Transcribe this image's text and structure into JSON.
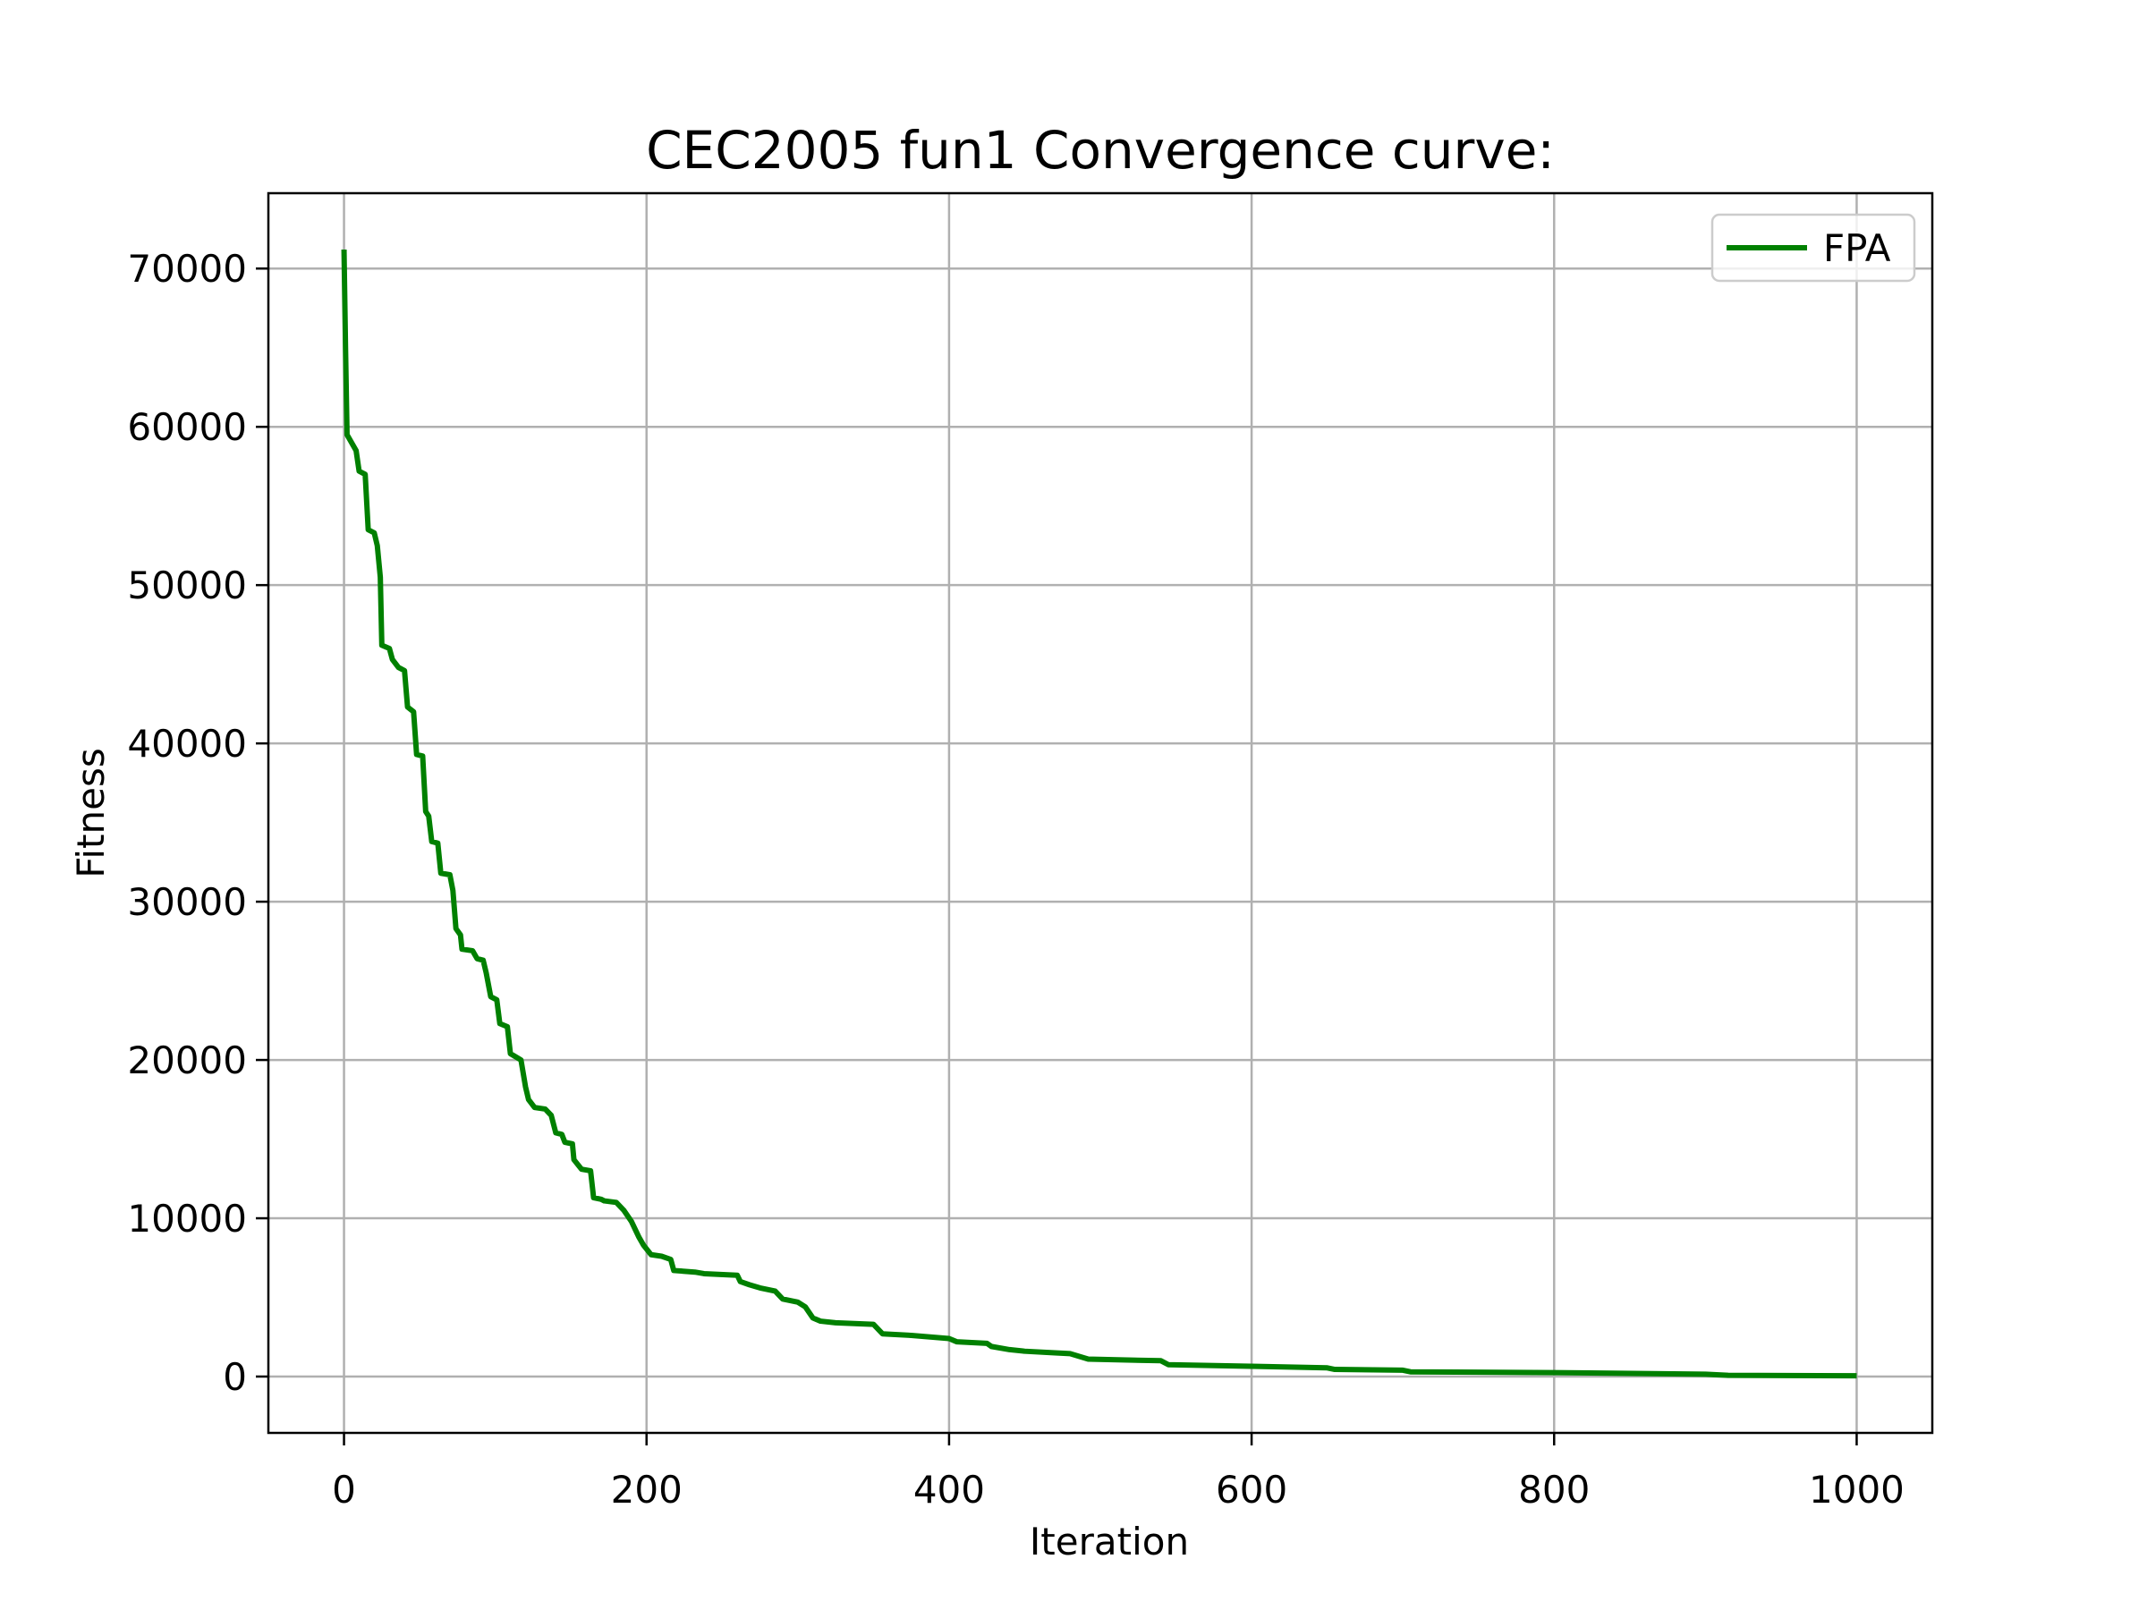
{
  "chart_data": {
    "type": "line",
    "title": "CEC2005 fun1 Convergence curve:",
    "x_label": "Iteration",
    "y_label": "Fitness",
    "x": [
      0,
      1,
      2,
      5,
      8,
      10,
      14,
      16,
      20,
      22,
      24,
      25,
      30,
      32,
      36,
      40,
      42,
      46,
      48,
      52,
      54,
      56,
      58,
      62,
      64,
      70,
      72,
      74,
      77,
      78,
      85,
      88,
      92,
      94,
      97,
      101,
      103,
      108,
      110,
      117,
      120,
      122,
      126,
      133,
      137,
      140,
      144,
      146,
      151,
      152,
      157,
      163,
      165,
      170,
      172,
      180,
      185,
      190,
      195,
      198,
      203,
      210,
      216,
      218,
      232,
      238,
      260,
      262,
      268,
      275,
      285,
      290,
      300,
      305,
      310,
      315,
      325,
      350,
      356,
      375,
      400,
      405,
      425,
      428,
      440,
      450,
      470,
      480,
      492,
      540,
      545,
      600,
      650,
      655,
      700,
      705,
      800,
      900,
      915,
      1000
    ],
    "series": [
      {
        "name": "FPA",
        "color": "#008000",
        "values": [
          71200,
          65000,
          59500,
          59000,
          58500,
          57200,
          57000,
          53500,
          53300,
          52500,
          50500,
          46200,
          46000,
          45300,
          44800,
          44600,
          42300,
          42000,
          39300,
          39200,
          35700,
          35400,
          33800,
          33700,
          31800,
          31700,
          30700,
          28300,
          27900,
          27000,
          26900,
          26400,
          26300,
          25500,
          24000,
          23800,
          22300,
          22100,
          20400,
          20000,
          18300,
          17500,
          17000,
          16900,
          16500,
          15400,
          15300,
          14800,
          14700,
          13700,
          13100,
          13000,
          11300,
          11200,
          11100,
          11000,
          10500,
          9800,
          8800,
          8300,
          7700,
          7600,
          7400,
          6700,
          6600,
          6500,
          6400,
          6000,
          5800,
          5600,
          5400,
          4900,
          4700,
          4400,
          3700,
          3500,
          3400,
          3300,
          2700,
          2600,
          2400,
          2200,
          2100,
          1900,
          1700,
          1600,
          1500,
          1450,
          1100,
          1000,
          750,
          650,
          550,
          450,
          400,
          300,
          250,
          150,
          80,
          50
        ]
      }
    ],
    "xlim": [
      -50,
      1050
    ],
    "ylim": [
      -3560,
      74760
    ],
    "xticks": [
      0,
      200,
      400,
      600,
      800,
      1000
    ],
    "yticks": [
      0,
      10000,
      20000,
      30000,
      40000,
      50000,
      60000,
      70000
    ],
    "grid": true,
    "legend": "upper right"
  }
}
